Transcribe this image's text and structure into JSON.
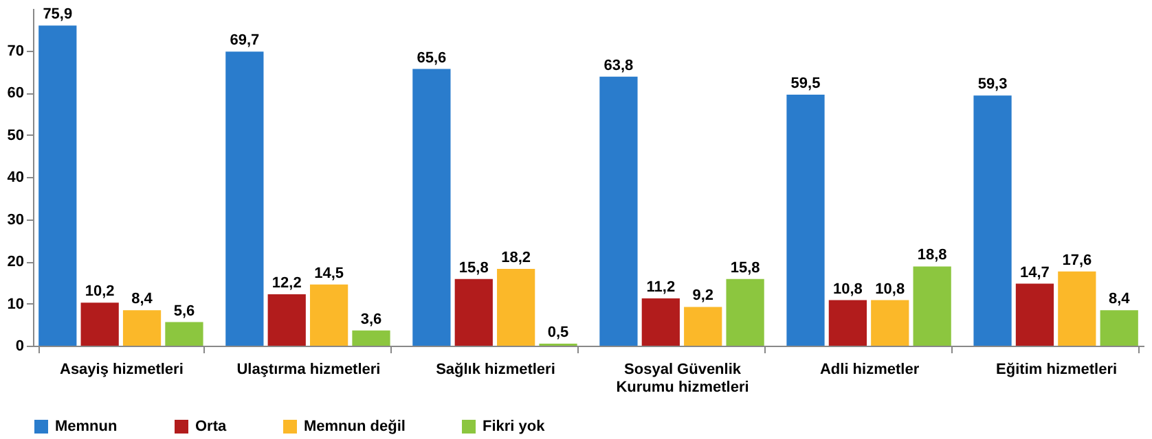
{
  "chart_data": {
    "type": "bar",
    "categories": [
      "Asayiş hizmetleri",
      "Ulaştırma hizmetleri",
      "Sağlık hizmetleri",
      "Sosyal Güvenlik Kurumu hizmetleri",
      "Adli hizmetler",
      "Eğitim hizmetleri"
    ],
    "series": [
      {
        "name": "Memnun",
        "color": "#2a7ccc",
        "values": [
          75.9,
          69.7,
          65.6,
          63.8,
          59.5,
          59.3
        ],
        "value_labels": [
          "75,9",
          "69,7",
          "65,6",
          "63,8",
          "59,5",
          "59,3"
        ]
      },
      {
        "name": "Orta",
        "color": "#b21c1c",
        "values": [
          10.2,
          12.2,
          15.8,
          11.2,
          10.8,
          14.7
        ],
        "value_labels": [
          "10,2",
          "12,2",
          "15,8",
          "11,2",
          "10,8",
          "14,7"
        ]
      },
      {
        "name": "Memnun değil",
        "color": "#fbb829",
        "values": [
          8.4,
          14.5,
          18.2,
          9.2,
          10.8,
          17.6
        ],
        "value_labels": [
          "8,4",
          "14,5",
          "18,2",
          "9,2",
          "10,8",
          "17,6"
        ]
      },
      {
        "name": "Fikri yok",
        "color": "#8cc63f",
        "values": [
          5.6,
          3.6,
          0.5,
          15.8,
          18.8,
          8.4
        ],
        "value_labels": [
          "5,6",
          "3,6",
          "0,5",
          "15,8",
          "18,8",
          "8,4"
        ]
      }
    ],
    "ylim": [
      0,
      80
    ],
    "yticks": [
      0,
      10,
      20,
      30,
      40,
      50,
      60,
      70
    ],
    "legend": "bottom"
  }
}
